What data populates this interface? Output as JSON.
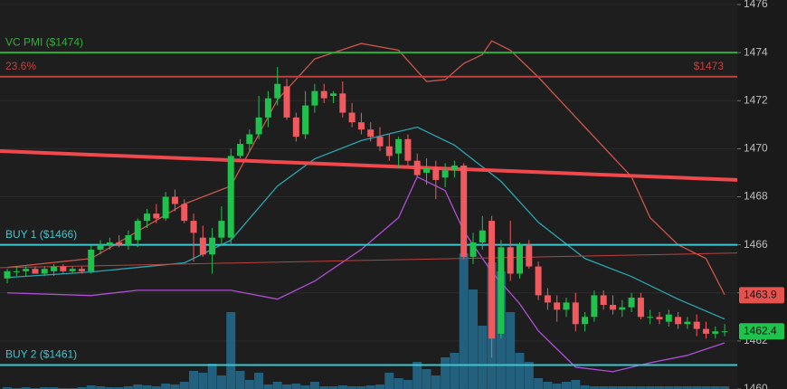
{
  "chart_data": {
    "type": "candlestick",
    "ylim": [
      1460,
      1476.19
    ],
    "yticks": [
      1460,
      1462,
      1464,
      1466,
      1468,
      1470,
      1472,
      1474,
      1476
    ],
    "xlim": [
      -0.78,
      78.35
    ],
    "grid": true,
    "up_color": "#1fc24c",
    "down_color": "#f05a5e",
    "candles": {
      "open": [
        1464.6,
        1464.9,
        1464.9,
        1465.0,
        1464.8,
        1464.9,
        1465.1,
        1464.9,
        1465.0,
        1464.9,
        1465.8,
        1466.0,
        1466.1,
        1466.0,
        1466.2,
        1467.0,
        1467.3,
        1467.1,
        1468.0,
        1467.7,
        1467.0,
        1466.3,
        1465.6,
        1466.3,
        1466.3,
        1469.7,
        1470.2,
        1470.6,
        1471.3,
        1472.1,
        1472.6,
        1471.3,
        1470.6,
        1471.8,
        1472.4,
        1472.2,
        1472.3,
        1471.5,
        1471.1,
        1470.8,
        1470.5,
        1470.1,
        1469.8,
        1470.4,
        1469.5,
        1469.0,
        1469.2,
        1468.8,
        1469.1,
        1469.3,
        1465.5,
        1466.1,
        1467.0,
        1462.3,
        1465.9,
        1464.8,
        1466.0,
        1465.1,
        1463.9,
        1463.6,
        1463.3,
        1463.6,
        1462.7,
        1463.0,
        1463.9,
        1463.5,
        1463.3,
        1463.4,
        1463.8,
        1463.0,
        1463.0,
        1462.8,
        1463.0,
        1462.7,
        1462.8,
        1462.5,
        1462.3,
        1462.4
      ],
      "high": [
        1465.0,
        1465.1,
        1465.1,
        1465.1,
        1465.1,
        1465.2,
        1465.2,
        1465.1,
        1465.1,
        1466.0,
        1466.2,
        1466.3,
        1466.4,
        1466.6,
        1467.1,
        1467.5,
        1467.7,
        1468.2,
        1468.3,
        1467.9,
        1467.3,
        1466.8,
        1466.7,
        1467.6,
        1470.0,
        1470.4,
        1470.8,
        1472.2,
        1472.4,
        1473.4,
        1472.9,
        1471.5,
        1472.4,
        1472.7,
        1472.7,
        1472.4,
        1472.8,
        1471.9,
        1471.5,
        1471.1,
        1470.9,
        1470.6,
        1470.5,
        1470.6,
        1469.8,
        1469.6,
        1469.5,
        1469.4,
        1469.5,
        1469.4,
        1466.5,
        1467.2,
        1467.2,
        1466.2,
        1467.0,
        1466.1,
        1466.2,
        1465.3,
        1464.2,
        1463.9,
        1463.8,
        1464.0,
        1463.2,
        1464.1,
        1464.1,
        1463.9,
        1463.7,
        1464.0,
        1464.0,
        1463.3,
        1463.2,
        1463.3,
        1463.2,
        1463.0,
        1463.1,
        1462.8,
        1462.6,
        1462.7
      ],
      "low": [
        1464.4,
        1464.7,
        1464.7,
        1464.8,
        1464.7,
        1464.7,
        1464.8,
        1464.8,
        1464.8,
        1464.8,
        1465.6,
        1465.8,
        1465.9,
        1465.8,
        1465.9,
        1466.7,
        1466.9,
        1467.0,
        1467.4,
        1466.9,
        1465.3,
        1465.5,
        1464.8,
        1466.0,
        1466.0,
        1469.6,
        1469.9,
        1470.4,
        1470.9,
        1471.8,
        1471.2,
        1470.3,
        1470.4,
        1471.5,
        1471.9,
        1471.9,
        1471.3,
        1470.9,
        1470.6,
        1470.3,
        1469.9,
        1469.5,
        1469.2,
        1469.3,
        1468.8,
        1468.5,
        1467.9,
        1468.4,
        1468.8,
        1465.4,
        1465.2,
        1465.8,
        1461.3,
        1462.1,
        1464.5,
        1464.6,
        1465.0,
        1463.7,
        1463.3,
        1462.8,
        1463.0,
        1462.4,
        1462.4,
        1462.8,
        1463.3,
        1463.1,
        1463.0,
        1463.2,
        1462.9,
        1462.7,
        1462.7,
        1462.6,
        1462.5,
        1462.5,
        1462.2,
        1462.1,
        1462.1,
        1462.2
      ],
      "close": [
        1464.9,
        1464.9,
        1465.0,
        1464.8,
        1465.0,
        1465.1,
        1464.9,
        1465.0,
        1464.9,
        1465.8,
        1466.0,
        1466.1,
        1466.0,
        1466.4,
        1467.0,
        1467.3,
        1467.1,
        1468.0,
        1467.7,
        1467.0,
        1466.5,
        1465.6,
        1466.3,
        1467.0,
        1469.7,
        1470.2,
        1470.6,
        1471.3,
        1472.1,
        1472.7,
        1471.3,
        1470.5,
        1471.8,
        1472.4,
        1472.1,
        1472.3,
        1471.5,
        1471.1,
        1470.8,
        1470.5,
        1470.1,
        1469.7,
        1470.4,
        1469.5,
        1468.9,
        1469.2,
        1468.7,
        1469.1,
        1469.3,
        1465.5,
        1466.1,
        1466.6,
        1462.1,
        1465.9,
        1464.8,
        1466.0,
        1465.1,
        1463.9,
        1463.6,
        1463.3,
        1463.6,
        1462.7,
        1463.0,
        1463.9,
        1463.5,
        1463.3,
        1463.4,
        1463.8,
        1463.0,
        1463.0,
        1462.9,
        1463.1,
        1462.7,
        1462.8,
        1462.5,
        1462.3,
        1462.4,
        1462.4
      ]
    },
    "volume": [
      2,
      1,
      2,
      1,
      2,
      2,
      1,
      1,
      2,
      4,
      3,
      2,
      2,
      3,
      5,
      4,
      3,
      6,
      5,
      8,
      20,
      18,
      28,
      15,
      85,
      20,
      10,
      18,
      5,
      8,
      5,
      6,
      4,
      8,
      3,
      3,
      4,
      3,
      3,
      4,
      5,
      18,
      12,
      10,
      30,
      22,
      15,
      35,
      40,
      150,
      110,
      70,
      140,
      130,
      85,
      40,
      30,
      12,
      8,
      6,
      8,
      10,
      4,
      3,
      3,
      3,
      3,
      3,
      3,
      3,
      3,
      3,
      3,
      3,
      3,
      3,
      3,
      3
    ],
    "volume_color": "#22607e",
    "bands": [
      {
        "color": "#c9574a",
        "x": [
          0,
          9,
          19,
          24,
          29,
          33,
          38,
          42,
          45,
          47,
          49,
          51,
          52,
          54,
          57,
          62,
          67,
          69,
          72,
          75,
          77
        ],
        "values": [
          1465.06,
          1465.43,
          1467.7,
          1468.45,
          1472.04,
          1473.74,
          1474.38,
          1474.1,
          1472.8,
          1472.87,
          1473.55,
          1473.92,
          1474.49,
          1474.1,
          1472.98,
          1470.9,
          1468.83,
          1467.13,
          1466.0,
          1465.43,
          1463.92
        ]
      },
      {
        "color": "#2aa6b0",
        "x": [
          0,
          9,
          19,
          24,
          29,
          33,
          38,
          44,
          48,
          53,
          57,
          62,
          67,
          72,
          77
        ],
        "values": [
          1464.64,
          1464.87,
          1465.25,
          1466.19,
          1468.45,
          1469.58,
          1470.34,
          1470.9,
          1470.15,
          1468.64,
          1466.94,
          1465.43,
          1464.68,
          1463.74,
          1462.91
        ]
      },
      {
        "color": "#b04fd6",
        "x": [
          0,
          9,
          14,
          19,
          24,
          29,
          33,
          38,
          42,
          44,
          47,
          49,
          52,
          55,
          57,
          61,
          65,
          69,
          73,
          77
        ],
        "values": [
          1464.0,
          1463.89,
          1464.11,
          1464.11,
          1464.11,
          1463.74,
          1464.49,
          1465.81,
          1467.13,
          1468.83,
          1468.26,
          1466.57,
          1464.87,
          1463.55,
          1462.42,
          1460.91,
          1460.72,
          1461.09,
          1461.4,
          1461.92
        ]
      }
    ],
    "trend_lines": [
      {
        "color": "#f0484c",
        "x": [
          -0.78,
          78.35
        ],
        "values": [
          1469.9,
          1468.7
        ],
        "width": 4
      },
      {
        "color": "#b8423f",
        "x": [
          -0.78,
          78.35
        ],
        "values": [
          1465.05,
          1465.66
        ],
        "width": 1
      }
    ],
    "levels": [
      {
        "label": "VC PMI ($1474)",
        "value": 1474,
        "color": "#2fae3c"
      },
      {
        "label": "23.6%",
        "right_label": "$1473",
        "value": 1473,
        "color": "#c0413f"
      },
      {
        "label": "BUY 1 ($1466)",
        "value": 1466,
        "color": "#3cc6d0"
      },
      {
        "label": "BUY 2 ($1461)",
        "value": 1461,
        "color": "#3cc6d0"
      }
    ],
    "price_tags": [
      {
        "value": 1463.9,
        "color": "#e5534f"
      },
      {
        "value": 1462.4,
        "color": "#1fc24c"
      }
    ]
  }
}
